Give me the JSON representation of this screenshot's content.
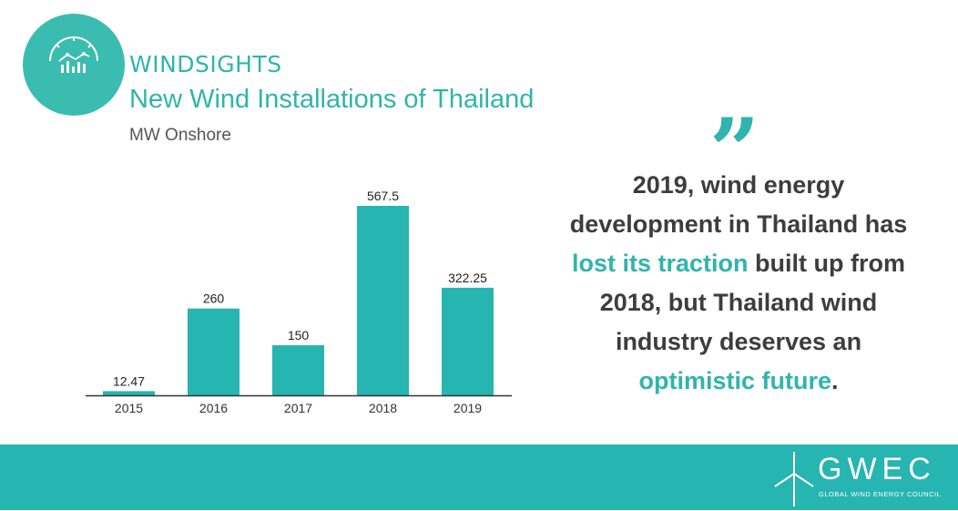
{
  "header": {
    "brand": "WINDSIGHTS",
    "icon": "wind-chart-icon",
    "title": "New Wind Installations of Thailand",
    "subtitle": "MW Onshore"
  },
  "quote": {
    "mark": "”",
    "part1": "2019, wind energy development in Thailand has ",
    "highlight1": "lost its traction",
    "part2": " built up from 2018, but Thailand wind industry deserves an ",
    "highlight2": "optimistic future",
    "part3": "."
  },
  "footer": {
    "logo_text": "GWEC",
    "logo_subtext": "GLOBAL WIND ENERGY COUNCIL"
  },
  "colors": {
    "accent": "#2fb5ac",
    "bar": "#26b5b0",
    "footer": "#26b5b0",
    "text": "#3d3d3d"
  },
  "chart_data": {
    "type": "bar",
    "title": "New Wind Installations of Thailand",
    "subtitle": "MW Onshore",
    "categories": [
      "2015",
      "2016",
      "2017",
      "2018",
      "2019"
    ],
    "values": [
      12.47,
      260,
      150,
      567.5,
      322.25
    ],
    "value_labels": [
      "12.47",
      "260",
      "150",
      "567.5",
      "322.25"
    ],
    "ylim": [
      0,
      567.5
    ],
    "grid": false,
    "legend": "none"
  }
}
